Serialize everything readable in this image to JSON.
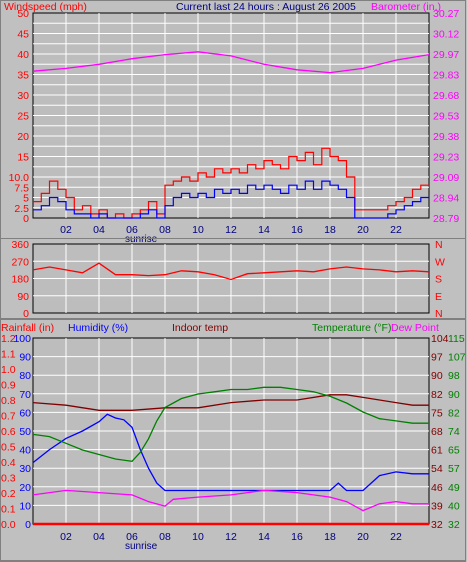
{
  "colors": {
    "bg": "#c0c0c0",
    "plot": "#bdbdbd",
    "grid": "#ffffff",
    "red": "#ff0000",
    "blue": "#0000ff",
    "magenta": "#ff00ff",
    "green": "#008000",
    "darkred": "#800000",
    "navy": "#000080"
  },
  "header": {
    "windspeed_label": "Windspeed (mph)",
    "title": "Current last 24 hours : August 26 2005",
    "barometer_label": "Barometer (in.)"
  },
  "panel3_header": {
    "rainfall_label": "Rainfall (in)",
    "humidity_label": "Humidity (%)",
    "indoor_label": "Indoor temp",
    "temperature_label": "Temperature (°F)",
    "dewpoint_label": "Dew Point"
  },
  "x_ticks": [
    "02",
    "04",
    "06",
    "08",
    "10",
    "12",
    "14",
    "16",
    "18",
    "20",
    "22"
  ],
  "sunrise_label": "sunrise",
  "chart_data": [
    {
      "type": "line",
      "id": "wind_barometer",
      "x_range_hours": [
        0,
        24
      ],
      "series": [
        {
          "name": "Windspeed",
          "axis": "left",
          "color": "#ff0000",
          "x": [
            0,
            0.5,
            1,
            1.5,
            2,
            2.5,
            3,
            3.5,
            4,
            4.5,
            5,
            5.5,
            6,
            6.5,
            7,
            7.5,
            8,
            8.5,
            9,
            9.5,
            10,
            10.5,
            11,
            11.5,
            12,
            12.5,
            13,
            13.5,
            14,
            14.5,
            15,
            15.5,
            16,
            16.5,
            17,
            17.5,
            18,
            18.5,
            19,
            19.5,
            20,
            20.5,
            21,
            21.5,
            22,
            22.5,
            23,
            23.5
          ],
          "values": [
            4,
            6,
            9,
            7,
            5,
            2,
            3,
            1,
            2,
            0,
            1,
            0,
            1,
            2,
            4,
            1,
            8,
            9,
            10,
            9,
            11,
            10,
            12,
            11,
            12,
            11,
            13,
            12,
            14,
            13,
            12,
            15,
            14,
            16,
            13,
            17,
            15,
            14,
            10,
            2,
            2,
            2,
            2,
            3,
            4,
            5,
            7,
            8
          ]
        },
        {
          "name": "Gust",
          "axis": "left",
          "color": "#0000ff",
          "x": [
            0,
            0.5,
            1,
            1.5,
            2,
            2.5,
            3,
            3.5,
            4,
            4.5,
            5,
            5.5,
            6,
            6.5,
            7,
            7.5,
            8,
            8.5,
            9,
            9.5,
            10,
            10.5,
            11,
            11.5,
            12,
            12.5,
            13,
            13.5,
            14,
            14.5,
            15,
            15.5,
            16,
            16.5,
            17,
            17.5,
            18,
            18.5,
            19,
            19.5,
            20,
            20.5,
            21,
            21.5,
            22,
            22.5,
            23,
            23.5
          ],
          "values": [
            2,
            3,
            5,
            4,
            2,
            1,
            1,
            0,
            1,
            0,
            0,
            0,
            0,
            1,
            2,
            0,
            3,
            5,
            6,
            5,
            6,
            5,
            7,
            6,
            7,
            6,
            8,
            7,
            8,
            7,
            6,
            8,
            7,
            9,
            7,
            9,
            8,
            7,
            5,
            0,
            0,
            0,
            0,
            1,
            2,
            3,
            4,
            5
          ]
        },
        {
          "name": "Barometer",
          "axis": "right",
          "color": "#ff00ff",
          "x": [
            0,
            2,
            4,
            6,
            8,
            10,
            12,
            14,
            16,
            18,
            20,
            22,
            24
          ],
          "values": [
            29.85,
            29.87,
            29.9,
            29.94,
            29.97,
            29.99,
            29.96,
            29.9,
            29.86,
            29.84,
            29.87,
            29.93,
            29.97
          ]
        }
      ],
      "y_left": {
        "ticks": [
          0,
          2.5,
          5,
          7.5,
          10,
          12.5,
          15,
          17.5,
          20,
          22.5,
          25,
          27.5,
          30,
          32.5,
          35,
          37.5,
          40,
          42.5,
          45,
          47.5,
          50
        ],
        "labels": [
          "0",
          "2.5",
          "5",
          "7.5",
          "10.0",
          "",
          "15",
          "",
          "20",
          "",
          "25",
          "",
          "30",
          "",
          "35",
          "",
          "40",
          "",
          "45",
          "",
          "50"
        ]
      },
      "y_right": {
        "labels": [
          "28.79",
          "28.94",
          "29.09",
          "29.23",
          "29.38",
          "29.53",
          "29.68",
          "29.83",
          "29.97",
          "30.12",
          "30.27"
        ]
      }
    },
    {
      "type": "scatter",
      "id": "wind_direction",
      "y_range": [
        0,
        360
      ],
      "y_left_labels": [
        "0",
        "90",
        "180",
        "270",
        "360"
      ],
      "y_right_labels": [
        "N",
        "E",
        "S",
        "W",
        "N"
      ],
      "series": [
        {
          "name": "Direction",
          "color": "#ff0000",
          "x": [
            0,
            1,
            2,
            3,
            4,
            5,
            6,
            7,
            8,
            9,
            10,
            11,
            12,
            13,
            14,
            15,
            16,
            17,
            18,
            19,
            20,
            21,
            22,
            23,
            24
          ],
          "values": [
            225,
            240,
            225,
            210,
            260,
            200,
            200,
            195,
            200,
            220,
            215,
            200,
            175,
            205,
            210,
            215,
            220,
            215,
            230,
            240,
            230,
            225,
            215,
            220,
            215
          ]
        }
      ]
    },
    {
      "type": "line",
      "id": "temp_humidity",
      "series": [
        {
          "name": "Rainfall",
          "color": "#ff0000",
          "x": [
            0,
            24
          ],
          "values": [
            0,
            0
          ]
        },
        {
          "name": "Humidity",
          "color": "#0000ff",
          "x": [
            0,
            1,
            2,
            3,
            4,
            4.5,
            5,
            5.5,
            6,
            6.5,
            7,
            7.5,
            8,
            10,
            12,
            14,
            16,
            18,
            18.5,
            19,
            19.5,
            20,
            21,
            22,
            23,
            24
          ],
          "values": [
            33,
            40,
            46,
            50,
            55,
            59,
            57,
            56,
            52,
            40,
            30,
            22,
            18,
            18,
            18,
            18,
            18,
            18,
            22,
            18,
            18,
            18,
            26,
            28,
            27,
            27
          ]
        },
        {
          "name": "Indoor temp",
          "color": "#800000",
          "x": [
            0,
            2,
            4,
            6,
            8,
            10,
            12,
            14,
            16,
            18,
            19,
            20,
            21,
            22,
            23,
            24
          ],
          "values": [
            79,
            78,
            76,
            76,
            77,
            77,
            79,
            80,
            80,
            82,
            82,
            81,
            80,
            79,
            78,
            78
          ]
        },
        {
          "name": "Temperature",
          "color": "#008000",
          "x": [
            0,
            1,
            2,
            3,
            4,
            5,
            6,
            6.5,
            7,
            7.5,
            8,
            9,
            10,
            11,
            12,
            13,
            14,
            15,
            16,
            17,
            18,
            19,
            20,
            21,
            22,
            23,
            24
          ],
          "values": [
            72,
            71,
            68,
            65,
            63,
            61,
            60,
            64,
            70,
            78,
            84,
            88,
            90,
            91,
            92,
            92,
            93,
            93,
            92,
            91,
            89,
            86,
            82,
            79,
            78,
            77,
            77
          ]
        },
        {
          "name": "Dew Point",
          "color": "#ff00ff",
          "x": [
            0,
            2,
            4,
            6,
            7,
            8,
            8.5,
            10,
            12,
            14,
            16,
            18,
            19,
            20,
            21,
            22,
            23,
            24
          ],
          "values": [
            45,
            47,
            46,
            45,
            42,
            40,
            43,
            44,
            45,
            47,
            46,
            44,
            42,
            38,
            41,
            42,
            41,
            41
          ]
        }
      ],
      "y_left_outer": [
        "0.0",
        "0.1",
        "0.2",
        "0.3",
        "0.4",
        "0.5",
        "0.6",
        "0.7",
        "0.8",
        "0.9",
        "1.0",
        "1.1",
        "1.2"
      ],
      "y_left_inner": [
        "0",
        "10",
        "20",
        "30",
        "40",
        "50",
        "60",
        "70",
        "80",
        "90",
        "100"
      ],
      "y_right_inner": [
        "32",
        "39",
        "46",
        "54",
        "61",
        "68",
        "75",
        "82",
        "90",
        "97",
        "104"
      ],
      "y_right_outer": [
        "32",
        "40",
        "49",
        "57",
        "65",
        "74",
        "82",
        "90",
        "98",
        "107",
        "115"
      ]
    }
  ]
}
